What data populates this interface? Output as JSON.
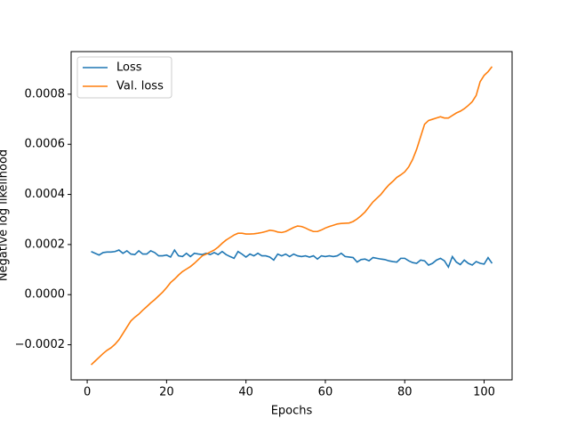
{
  "chart_data": {
    "type": "line",
    "xlabel": "Epochs",
    "ylabel": "Negative log likelihood",
    "x": [
      1,
      2,
      3,
      4,
      5,
      6,
      7,
      8,
      9,
      10,
      11,
      12,
      13,
      14,
      15,
      16,
      17,
      18,
      19,
      20,
      21,
      22,
      23,
      24,
      25,
      26,
      27,
      28,
      29,
      30,
      31,
      32,
      33,
      34,
      35,
      36,
      37,
      38,
      39,
      40,
      41,
      42,
      43,
      44,
      45,
      46,
      47,
      48,
      49,
      50,
      51,
      52,
      53,
      54,
      55,
      56,
      57,
      58,
      59,
      60,
      61,
      62,
      63,
      64,
      65,
      66,
      67,
      68,
      69,
      70,
      71,
      72,
      73,
      74,
      75,
      76,
      77,
      78,
      79,
      80,
      81,
      82,
      83,
      84,
      85,
      86,
      87,
      88,
      89,
      90,
      91,
      92,
      93,
      94,
      95,
      96,
      97,
      98,
      99,
      100,
      101,
      102
    ],
    "series": [
      {
        "name": "Loss",
        "color": "#1f77b4",
        "values": [
          0.000172,
          0.000165,
          0.000158,
          0.000168,
          0.00017,
          0.00017,
          0.000172,
          0.000178,
          0.000165,
          0.000175,
          0.000162,
          0.00016,
          0.000175,
          0.000162,
          0.000162,
          0.000175,
          0.000168,
          0.000155,
          0.000155,
          0.000158,
          0.00015,
          0.000178,
          0.000155,
          0.000152,
          0.000165,
          0.000152,
          0.000165,
          0.000162,
          0.00016,
          0.000165,
          0.00016,
          0.000168,
          0.00016,
          0.000172,
          0.00016,
          0.000152,
          0.000145,
          0.000172,
          0.000162,
          0.00015,
          0.000162,
          0.000155,
          0.000165,
          0.000155,
          0.000155,
          0.00015,
          0.000138,
          0.000162,
          0.000155,
          0.000162,
          0.000152,
          0.000162,
          0.000155,
          0.000152,
          0.000155,
          0.00015,
          0.000155,
          0.000142,
          0.000155,
          0.000152,
          0.000155,
          0.000152,
          0.000155,
          0.000165,
          0.000152,
          0.00015,
          0.000148,
          0.00013,
          0.00014,
          0.000142,
          0.000135,
          0.000148,
          0.000145,
          0.000142,
          0.00014,
          0.000135,
          0.000132,
          0.00013,
          0.000145,
          0.000145,
          0.000135,
          0.000128,
          0.000125,
          0.000138,
          0.000135,
          0.000118,
          0.000125,
          0.000138,
          0.000145,
          0.000135,
          0.00011,
          0.000152,
          0.00013,
          0.00012,
          0.000138,
          0.000125,
          0.000118,
          0.000132,
          0.000125,
          0.000122,
          0.000148,
          0.000125
        ]
      },
      {
        "name": "Val. loss",
        "color": "#ff7f0e",
        "values": [
          -0.00028,
          -0.000265,
          -0.00025,
          -0.000235,
          -0.000222,
          -0.000212,
          -0.000198,
          -0.00018,
          -0.000155,
          -0.00013,
          -0.000105,
          -9e-05,
          -7.8e-05,
          -6.2e-05,
          -4.8e-05,
          -3.3e-05,
          -2e-05,
          -5e-06,
          1e-05,
          2.8e-05,
          4.8e-05,
          6.2e-05,
          7.8e-05,
          9.2e-05,
          0.000102,
          0.000112,
          0.000125,
          0.00014,
          0.000155,
          0.000162,
          0.00017,
          0.000178,
          0.00019,
          0.000205,
          0.000218,
          0.000228,
          0.000238,
          0.000245,
          0.000245,
          0.000242,
          0.000242,
          0.000243,
          0.000245,
          0.000248,
          0.000252,
          0.000257,
          0.000255,
          0.00025,
          0.000248,
          0.000252,
          0.00026,
          0.000268,
          0.000274,
          0.000272,
          0.000266,
          0.000258,
          0.000252,
          0.000252,
          0.000258,
          0.000266,
          0.000272,
          0.000277,
          0.000282,
          0.000284,
          0.000285,
          0.000286,
          0.000292,
          0.000302,
          0.000315,
          0.00033,
          0.00035,
          0.00037,
          0.000385,
          0.0004,
          0.00042,
          0.000438,
          0.000452,
          0.000468,
          0.000478,
          0.00049,
          0.00051,
          0.00054,
          0.00058,
          0.00063,
          0.00068,
          0.000695,
          0.0007,
          0.000705,
          0.00071,
          0.000705,
          0.000705,
          0.000715,
          0.000725,
          0.000732,
          0.000742,
          0.000755,
          0.00077,
          0.000795,
          0.00085,
          0.000875,
          0.00089,
          0.00091
        ]
      }
    ],
    "xlim": [
      -4.05,
      107.05
    ],
    "xticks": [
      0,
      20,
      40,
      60,
      80,
      100
    ],
    "ylim": [
      -0.00034,
      0.00097
    ],
    "yticks": [
      {
        "value": -0.0002,
        "label": "−0.0002"
      },
      {
        "value": 0,
        "label": "0.0000"
      },
      {
        "value": 0.0002,
        "label": "0.0002"
      },
      {
        "value": 0.0004,
        "label": "0.0004"
      },
      {
        "value": 0.0006,
        "label": "0.0006"
      },
      {
        "value": 0.0008,
        "label": "0.0008"
      }
    ],
    "legend": "upper left"
  }
}
